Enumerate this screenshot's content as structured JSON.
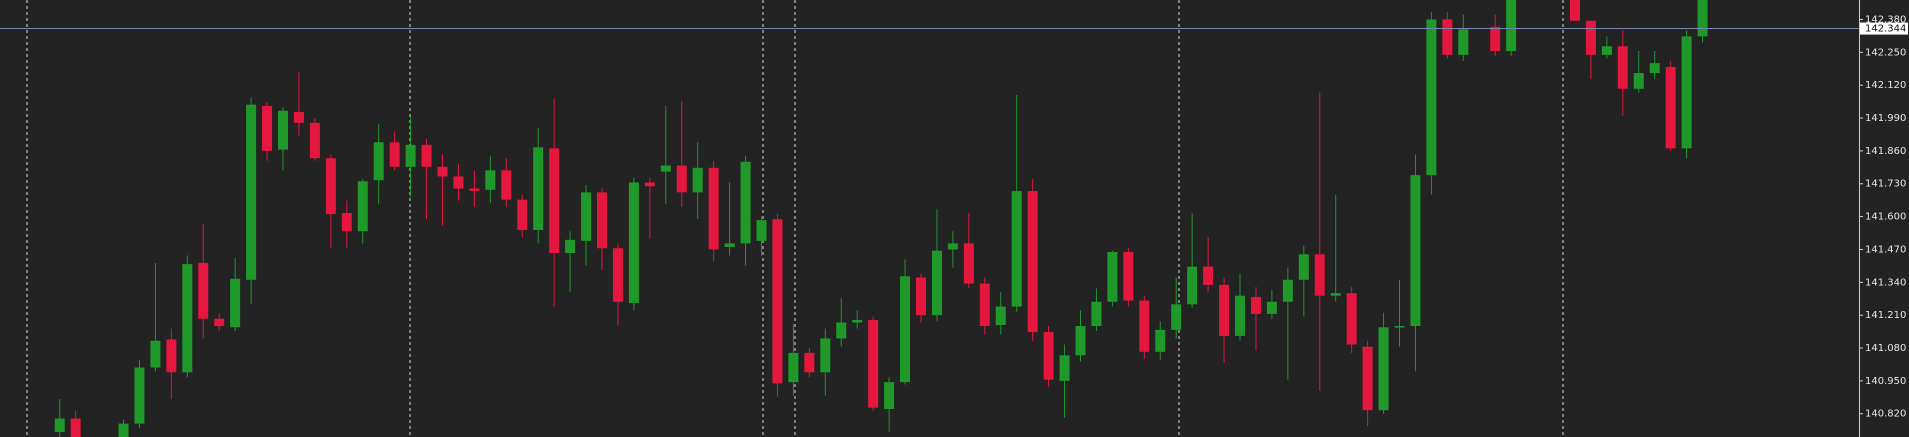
{
  "chart_data": {
    "type": "candlestick",
    "up_color": "#1f9a2a",
    "down_color": "#e5173f",
    "ylim": [
      140.728,
      142.457
    ],
    "yticks": [
      {
        "value": 142.38,
        "label": "142.380"
      },
      {
        "value": 142.25,
        "label": "142.250"
      },
      {
        "value": 142.12,
        "label": "142.120"
      },
      {
        "value": 141.99,
        "label": "141.990"
      },
      {
        "value": 141.86,
        "label": "141.860"
      },
      {
        "value": 141.73,
        "label": "141.730"
      },
      {
        "value": 141.6,
        "label": "141.600"
      },
      {
        "value": 141.47,
        "label": "141.470"
      },
      {
        "value": 141.34,
        "label": "141.340"
      },
      {
        "value": 141.21,
        "label": "141.210"
      },
      {
        "value": 141.08,
        "label": "141.080"
      },
      {
        "value": 140.95,
        "label": "140.950"
      },
      {
        "value": 140.82,
        "label": "140.820"
      }
    ],
    "current_price": 142.344,
    "open": [
      140.748,
      140.801,
      null,
      null,
      140.728,
      140.781,
      141.003,
      141.114,
      140.984,
      141.417,
      141.196,
      141.162,
      141.35,
      142.038,
      141.865,
      142.014,
      141.971,
      141.831,
      141.614,
      141.542,
      141.744,
      141.894,
      141.797,
      141.884,
      141.797,
      141.759,
      141.711,
      141.706,
      141.783,
      141.667,
      141.547,
      141.87,
      141.456,
      141.504,
      141.696,
      141.475,
      141.258,
      141.735,
      141.778,
      141.802,
      141.696,
      141.793,
      141.48,
      141.494,
      141.504,
      141.59,
      140.945,
      141.061,
      140.984,
      141.118,
      141.181,
      141.191,
      140.839,
      140.945,
      141.359,
      141.21,
      141.47,
      141.494,
      141.335,
      141.171,
      141.244,
      141.701,
      141.143,
      140.95,
      141.051,
      141.167,
      141.263,
      141.46,
      141.268,
      141.065,
      141.152,
      141.253,
      141.402,
      141.33,
      141.128,
      141.282,
      141.215,
      141.263,
      141.35,
      141.451,
      141.287,
      141.297,
      141.085,
      140.834,
      141.162,
      141.167,
      141.764,
      142.38,
      142.24,
      null,
      142.351,
      142.255,
      null,
      null,
      null,
      142.457,
      142.375,
      142.24,
      142.274,
      142.106,
      142.168,
      142.192,
      141.87,
      142.313
    ],
    "high": [
      140.878,
      140.83,
      null,
      null,
      140.796,
      141.032,
      141.417,
      141.157,
      141.446,
      141.571,
      141.215,
      141.436,
      142.072,
      142.053,
      142.033,
      142.173,
      141.99,
      141.846,
      141.663,
      141.749,
      141.966,
      141.937,
      141.999,
      141.908,
      141.846,
      141.807,
      141.783,
      141.841,
      141.831,
      141.687,
      141.951,
      142.067,
      141.542,
      141.725,
      141.715,
      141.494,
      141.754,
      141.754,
      142.038,
      142.057,
      141.894,
      141.821,
      141.735,
      141.841,
      141.6,
      141.61,
      141.176,
      141.08,
      141.157,
      141.277,
      141.229,
      141.205,
      140.964,
      141.431,
      141.374,
      141.629,
      141.542,
      141.614,
      141.359,
      141.301,
      142.081,
      141.749,
      141.167,
      141.094,
      141.229,
      141.316,
      141.465,
      141.475,
      141.287,
      141.186,
      141.359,
      141.614,
      141.518,
      141.359,
      141.374,
      141.321,
      141.311,
      141.398,
      141.484,
      142.091,
      141.687,
      141.321,
      141.109,
      141.22,
      141.35,
      141.846,
      142.409,
      142.409,
      142.399,
      null,
      142.399,
      142.457,
      null,
      null,
      null,
      142.457,
      142.375,
      142.313,
      142.337,
      142.255,
      142.255,
      142.216,
      142.337,
      142.457
    ],
    "low": [
      140.728,
      140.728,
      null,
      null,
      140.728,
      140.762,
      140.988,
      140.878,
      140.964,
      141.118,
      141.147,
      141.147,
      141.253,
      141.821,
      141.783,
      141.918,
      141.821,
      141.475,
      141.475,
      141.494,
      141.648,
      141.783,
      141.677,
      141.59,
      141.566,
      141.663,
      141.638,
      141.653,
      141.638,
      141.518,
      141.494,
      141.244,
      141.301,
      141.407,
      141.388,
      141.167,
      141.229,
      141.513,
      141.648,
      141.638,
      141.59,
      141.422,
      141.446,
      141.407,
      141.446,
      140.887,
      140.892,
      140.964,
      140.892,
      141.085,
      141.157,
      140.83,
      140.748,
      140.936,
      141.181,
      141.186,
      141.398,
      141.316,
      141.133,
      141.133,
      141.224,
      141.109,
      140.926,
      140.805,
      141.027,
      141.147,
      141.244,
      141.244,
      141.037,
      141.032,
      141.118,
      141.239,
      141.301,
      141.022,
      141.109,
      141.07,
      141.196,
      140.955,
      141.205,
      140.911,
      141.263,
      141.061,
      140.772,
      140.82,
      141.085,
      140.988,
      141.687,
      142.226,
      142.216,
      null,
      142.236,
      142.236,
      null,
      null,
      null,
      142.375,
      142.144,
      142.226,
      141.999,
      142.091,
      142.144,
      141.86,
      141.831,
      142.289
    ],
    "close": [
      140.801,
      140.728,
      null,
      null,
      140.781,
      141.003,
      141.109,
      140.984,
      141.412,
      141.196,
      141.167,
      141.354,
      142.043,
      141.86,
      142.019,
      141.971,
      141.831,
      141.61,
      141.542,
      141.74,
      141.894,
      141.797,
      141.884,
      141.797,
      141.759,
      141.711,
      141.701,
      141.783,
      141.667,
      141.547,
      141.874,
      141.456,
      141.508,
      141.696,
      141.475,
      141.263,
      141.735,
      141.72,
      141.802,
      141.696,
      141.793,
      141.47,
      141.494,
      141.817,
      141.586,
      140.94,
      141.061,
      140.984,
      141.118,
      141.181,
      141.191,
      140.844,
      140.945,
      141.364,
      141.21,
      141.465,
      141.494,
      141.335,
      141.167,
      141.244,
      141.701,
      141.143,
      140.955,
      141.051,
      141.167,
      141.263,
      141.46,
      141.268,
      141.065,
      141.152,
      141.253,
      141.402,
      141.33,
      141.128,
      141.287,
      141.215,
      141.263,
      141.35,
      141.451,
      141.287,
      141.297,
      141.094,
      140.834,
      141.162,
      141.167,
      141.764,
      142.38,
      142.24,
      142.341,
      null,
      142.255,
      142.457,
      null,
      null,
      null,
      142.375,
      142.24,
      142.274,
      142.106,
      142.168,
      142.207,
      141.87,
      142.313,
      142.457
    ]
  }
}
